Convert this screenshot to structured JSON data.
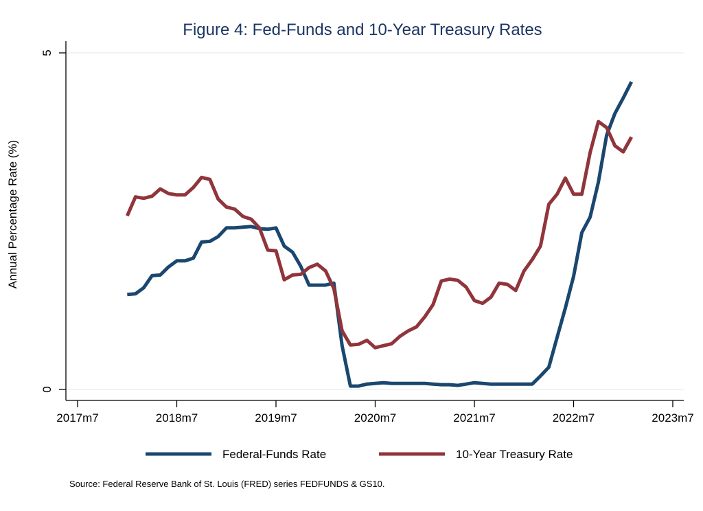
{
  "chart_data": {
    "type": "line",
    "title": "Figure 4: Fed-Funds and 10-Year Treasury Rates",
    "xlabel": "",
    "ylabel": "Annual Percentage Rate (%)",
    "ylim": [
      0,
      5
    ],
    "yticks": [
      "0",
      "5"
    ],
    "ytick_values": [
      0,
      5
    ],
    "xticks": [
      "2017m7",
      "2018m7",
      "2019m7",
      "2020m7",
      "2021m7",
      "2022m7",
      "2023m7"
    ],
    "x_start": "2018m1",
    "legend_position": "bottom",
    "grid": true,
    "note": "Source: Federal Reserve Bank of St. Louis (FRED) series FEDFUNDS & GS10.",
    "series": [
      {
        "name": "Federal-Funds Rate",
        "color": "#1a476f",
        "values": [
          1.41,
          1.42,
          1.51,
          1.69,
          1.7,
          1.82,
          1.91,
          1.91,
          1.95,
          2.19,
          2.2,
          2.27,
          2.4,
          2.4,
          2.41,
          2.42,
          2.39,
          2.38,
          2.4,
          2.13,
          2.04,
          1.83,
          1.55,
          1.55,
          1.55,
          1.58,
          0.65,
          0.05,
          0.05,
          0.08,
          0.09,
          0.1,
          0.09,
          0.09,
          0.09,
          0.09,
          0.09,
          0.08,
          0.07,
          0.07,
          0.06,
          0.08,
          0.1,
          0.09,
          0.08,
          0.08,
          0.08,
          0.08,
          0.08,
          0.08,
          0.2,
          0.33,
          0.77,
          1.21,
          1.68,
          2.33,
          2.56,
          3.08,
          3.78,
          4.1,
          4.33,
          4.57
        ]
      },
      {
        "name": "10-Year Treasury Rate",
        "color": "#90353b",
        "values": [
          2.58,
          2.86,
          2.84,
          2.87,
          2.98,
          2.91,
          2.89,
          2.89,
          3.0,
          3.15,
          3.12,
          2.83,
          2.71,
          2.68,
          2.57,
          2.53,
          2.4,
          2.07,
          2.06,
          1.63,
          1.7,
          1.71,
          1.81,
          1.86,
          1.76,
          1.5,
          0.87,
          0.66,
          0.67,
          0.73,
          0.62,
          0.65,
          0.68,
          0.79,
          0.87,
          0.93,
          1.08,
          1.26,
          1.61,
          1.64,
          1.62,
          1.52,
          1.32,
          1.28,
          1.37,
          1.58,
          1.56,
          1.47,
          1.76,
          1.93,
          2.13,
          2.75,
          2.9,
          3.14,
          2.9,
          2.9,
          3.52,
          3.98,
          3.89,
          3.62,
          3.53,
          3.75
        ]
      }
    ]
  }
}
